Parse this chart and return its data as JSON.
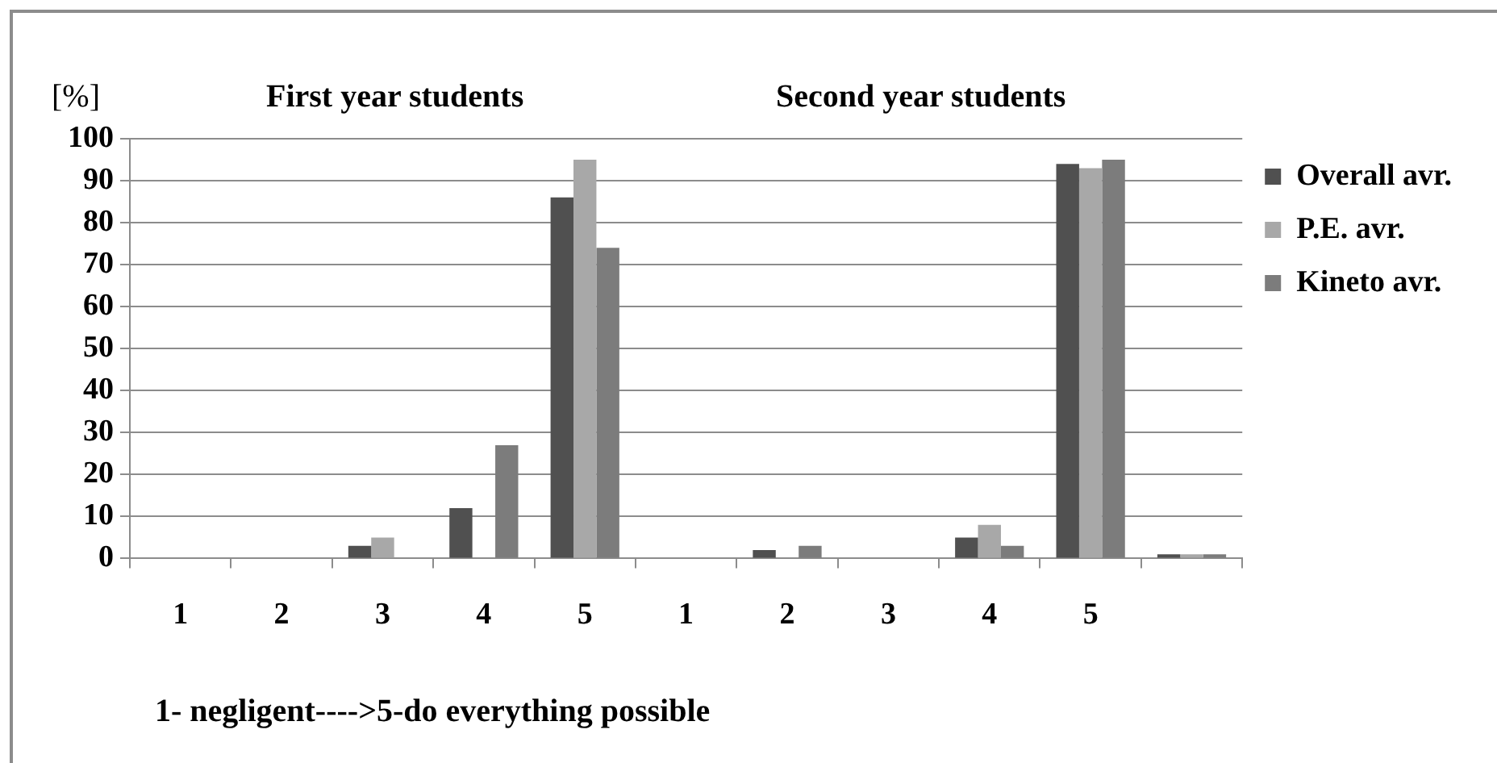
{
  "chart_data": {
    "type": "bar",
    "ylabel": "[%]",
    "annotations": [
      "First year students",
      "Second year students",
      "1- negligent---->5-do everything possible"
    ],
    "categories": [
      "1",
      "2",
      "3",
      "4",
      "5",
      "1",
      "2",
      "3",
      "4",
      "5",
      null
    ],
    "series": [
      {
        "name": "Overall avr.",
        "color": "#505050",
        "values": [
          0,
          0,
          3,
          12,
          86,
          0,
          2,
          0,
          5,
          94,
          1
        ]
      },
      {
        "name": "P.E. avr.",
        "color": "#a8a8a8",
        "values": [
          0,
          0,
          5,
          0,
          95,
          0,
          0,
          0,
          8,
          93,
          1
        ]
      },
      {
        "name": "Kineto avr.",
        "color": "#7c7c7c",
        "values": [
          0,
          0,
          0,
          27,
          74,
          0,
          3,
          0,
          3,
          95,
          1
        ]
      }
    ],
    "ylim": [
      0,
      100
    ],
    "yticks": [
      0,
      10,
      20,
      30,
      40,
      50,
      60,
      70,
      80,
      90,
      100
    ],
    "grid": "y",
    "legend": "top right"
  }
}
